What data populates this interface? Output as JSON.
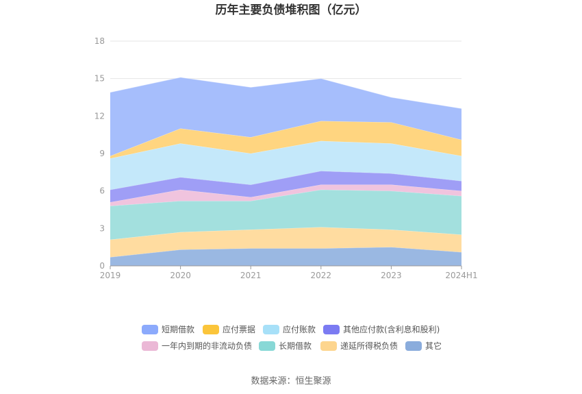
{
  "chart_data": {
    "type": "area",
    "stacked": true,
    "title": "历年主要负债堆积图（亿元）",
    "categories": [
      "2019",
      "2020",
      "2021",
      "2022",
      "2023",
      "2024H1"
    ],
    "ylim": [
      0,
      18
    ],
    "yticks": [
      0,
      3,
      6,
      9,
      12,
      15,
      18
    ],
    "grid": true,
    "legend_position": "bottom",
    "series": [
      {
        "name": "其它",
        "color": "#9ab8e2",
        "values": [
          0.7,
          1.3,
          1.4,
          1.4,
          1.5,
          1.1
        ]
      },
      {
        "name": "递延所得税负债",
        "color": "#ffdca0",
        "values": [
          1.4,
          1.4,
          1.5,
          1.7,
          1.4,
          1.4
        ]
      },
      {
        "name": "长期借款",
        "color": "#a3e0de",
        "values": [
          2.7,
          2.5,
          2.3,
          3.0,
          3.1,
          3.1
        ]
      },
      {
        "name": "一年内到期的非流动负债",
        "color": "#f0c4de",
        "values": [
          0.3,
          0.9,
          0.3,
          0.4,
          0.5,
          0.4
        ]
      },
      {
        "name": "其他应付款(含利息和股利)",
        "color": "#9f9ef6",
        "values": [
          1.0,
          1.0,
          1.0,
          1.1,
          0.9,
          0.8
        ]
      },
      {
        "name": "应付账款",
        "color": "#c4e8fa",
        "values": [
          2.5,
          2.7,
          2.5,
          2.4,
          2.4,
          2.0
        ]
      },
      {
        "name": "应付票据",
        "color": "#ffd580",
        "values": [
          0.2,
          1.2,
          1.3,
          1.6,
          1.7,
          1.3
        ]
      },
      {
        "name": "短期借款",
        "color": "#a6befc",
        "values": [
          5.1,
          4.1,
          4.0,
          3.4,
          2.0,
          2.5
        ]
      }
    ],
    "legend": [
      {
        "name": "短期借款",
        "color": "#8caafc"
      },
      {
        "name": "应付票据",
        "color": "#fbc53b"
      },
      {
        "name": "应付账款",
        "color": "#a7e0f8"
      },
      {
        "name": "其他应付款(含利息和股利)",
        "color": "#7b7bf2"
      },
      {
        "name": "一年内到期的非流动负债",
        "color": "#ebb8d6"
      },
      {
        "name": "长期借款",
        "color": "#88d8d6"
      },
      {
        "name": "递延所得税负债",
        "color": "#fdd58e"
      },
      {
        "name": "其它",
        "color": "#8aacdc"
      }
    ],
    "source": "数据来源：恒生聚源"
  }
}
